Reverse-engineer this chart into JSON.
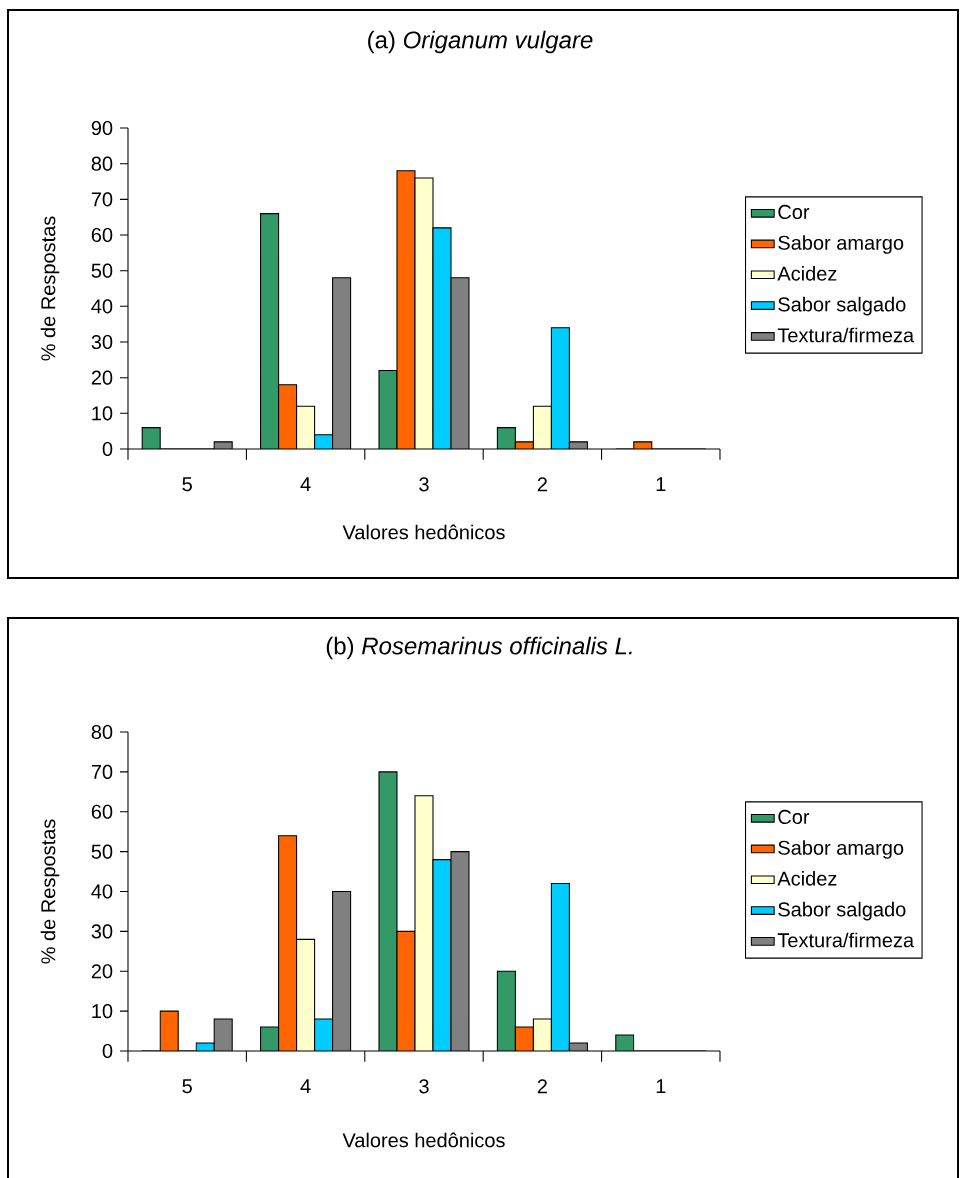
{
  "chart_data": [
    {
      "type": "bar",
      "title": "(a) *Origanum  vulgare*",
      "xlabel": "Valores hedônicos",
      "ylabel": "% de Respostas",
      "categories": [
        "5",
        "4",
        "3",
        "2",
        "1"
      ],
      "series": [
        {
          "name": "Cor",
          "color": "#339966",
          "values": [
            6,
            66,
            22,
            6,
            0
          ]
        },
        {
          "name": "Sabor amargo",
          "color": "#ff6600",
          "values": [
            0,
            18,
            78,
            2,
            2
          ]
        },
        {
          "name": "Acidez",
          "color": "#ffffcc",
          "values": [
            0,
            12,
            76,
            12,
            0
          ]
        },
        {
          "name": "Sabor salgado",
          "color": "#00ccff",
          "values": [
            0,
            4,
            62,
            34,
            0
          ]
        },
        {
          "name": "Textura/firmeza",
          "color": "#808080",
          "values": [
            2,
            48,
            48,
            2,
            0
          ]
        }
      ],
      "ylim": [
        0,
        90
      ],
      "yticks": [
        0,
        10,
        20,
        30,
        40,
        50,
        60,
        70,
        80,
        90
      ],
      "legend": "right"
    },
    {
      "type": "bar",
      "title": "(b) *Rosemarinus officinalis L.*",
      "xlabel": "Valores hedônicos",
      "ylabel": "% de Respostas",
      "categories": [
        "5",
        "4",
        "3",
        "2",
        "1"
      ],
      "series": [
        {
          "name": "Cor",
          "color": "#339966",
          "values": [
            0,
            6,
            70,
            20,
            4
          ]
        },
        {
          "name": "Sabor amargo",
          "color": "#ff6600",
          "values": [
            10,
            54,
            30,
            6,
            0
          ]
        },
        {
          "name": "Acidez",
          "color": "#ffffcc",
          "values": [
            0,
            28,
            64,
            8,
            0
          ]
        },
        {
          "name": "Sabor salgado",
          "color": "#00ccff",
          "values": [
            2,
            8,
            48,
            42,
            0
          ]
        },
        {
          "name": "Textura/firmeza",
          "color": "#808080",
          "values": [
            8,
            40,
            50,
            2,
            0
          ]
        }
      ],
      "ylim": [
        0,
        80
      ],
      "yticks": [
        0,
        10,
        20,
        30,
        40,
        50,
        60,
        70,
        80
      ],
      "legend": "right"
    }
  ]
}
